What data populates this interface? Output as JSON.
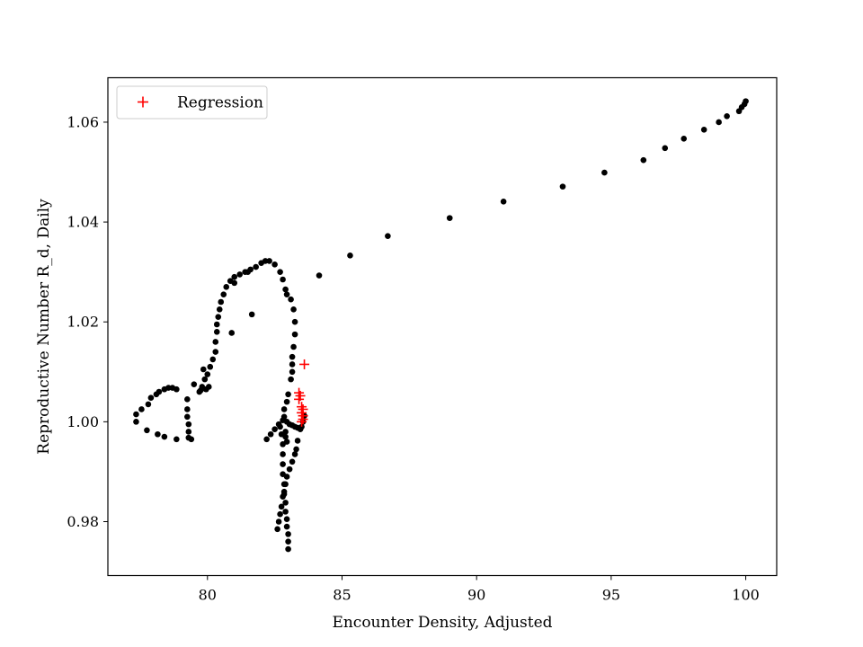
{
  "chart_data": {
    "type": "scatter",
    "xlabel": "Encounter Density, Adjusted",
    "ylabel": "Reproductive Number R_d, Daily",
    "xlim": [
      76.3,
      101.15
    ],
    "ylim": [
      0.9692,
      1.0689
    ],
    "x_ticks": [
      80,
      85,
      90,
      95,
      100
    ],
    "x_tick_labels": [
      "80",
      "85",
      "90",
      "95",
      "100"
    ],
    "y_ticks": [
      0.98,
      1.0,
      1.02,
      1.04,
      1.06
    ],
    "y_tick_labels": [
      "0.98",
      "1.00",
      "1.02",
      "1.04",
      "1.06"
    ],
    "grid": false,
    "legend_position": "top-left",
    "series": [
      {
        "style": "dot",
        "color": "#000000",
        "points": [
          [
            100.0,
            1.0642
          ],
          [
            99.95,
            1.0636
          ],
          [
            99.85,
            1.063
          ],
          [
            99.75,
            1.0622
          ],
          [
            99.3,
            1.0612
          ],
          [
            99.0,
            1.06
          ],
          [
            98.45,
            1.0585
          ],
          [
            97.7,
            1.0567
          ],
          [
            97.0,
            1.0548
          ],
          [
            96.2,
            1.0524
          ],
          [
            94.75,
            1.0499
          ],
          [
            93.2,
            1.0471
          ],
          [
            91.0,
            1.0441
          ],
          [
            89.0,
            1.0408
          ],
          [
            86.7,
            1.0372
          ],
          [
            85.3,
            1.0333
          ],
          [
            84.15,
            1.0293
          ],
          [
            83.6,
            1.0012
          ],
          [
            83.55,
            1.0
          ],
          [
            83.5,
            0.999
          ],
          [
            83.45,
            0.9985
          ],
          [
            83.35,
            0.9962
          ],
          [
            83.3,
            0.9945
          ],
          [
            83.25,
            0.9935
          ],
          [
            83.15,
            0.992
          ],
          [
            83.05,
            0.9905
          ],
          [
            82.95,
            0.989
          ],
          [
            82.9,
            0.9875
          ],
          [
            82.85,
            0.986
          ],
          [
            82.8,
            0.985
          ],
          [
            82.75,
            0.983
          ],
          [
            82.7,
            0.9815
          ],
          [
            82.65,
            0.98
          ],
          [
            82.6,
            0.9785
          ],
          [
            83.0,
            0.9745
          ],
          [
            83.0,
            0.976
          ],
          [
            83.0,
            0.9775
          ],
          [
            82.95,
            0.979
          ],
          [
            82.95,
            0.9805
          ],
          [
            82.9,
            0.982
          ],
          [
            82.9,
            0.9838
          ],
          [
            82.85,
            0.9855
          ],
          [
            82.85,
            0.9875
          ],
          [
            82.8,
            0.9895
          ],
          [
            82.8,
            0.9915
          ],
          [
            82.8,
            0.9935
          ],
          [
            82.8,
            0.9955
          ],
          [
            82.75,
            0.9975
          ],
          [
            82.7,
            0.999
          ],
          [
            82.2,
            0.9965
          ],
          [
            82.35,
            0.9975
          ],
          [
            82.5,
            0.9985
          ],
          [
            82.65,
            0.9995
          ],
          [
            82.8,
            1.0003
          ],
          [
            82.95,
            1.0
          ],
          [
            83.05,
            0.9995
          ],
          [
            83.15,
            0.9993
          ],
          [
            83.25,
            0.999
          ],
          [
            83.35,
            0.9988
          ],
          [
            82.95,
            0.996
          ],
          [
            82.9,
            0.997
          ],
          [
            82.9,
            0.998
          ],
          [
            82.85,
            1.001
          ],
          [
            82.85,
            1.0025
          ],
          [
            82.95,
            1.004
          ],
          [
            83.0,
            1.0055
          ],
          [
            83.1,
            1.0085
          ],
          [
            83.15,
            1.01
          ],
          [
            83.15,
            1.0115
          ],
          [
            83.15,
            1.013
          ],
          [
            83.2,
            1.015
          ],
          [
            83.25,
            1.0175
          ],
          [
            83.25,
            1.02
          ],
          [
            83.2,
            1.0225
          ],
          [
            83.1,
            1.0245
          ],
          [
            82.95,
            1.0255
          ],
          [
            82.9,
            1.0265
          ],
          [
            82.8,
            1.0285
          ],
          [
            82.7,
            1.03
          ],
          [
            82.5,
            1.0315
          ],
          [
            82.3,
            1.0322
          ],
          [
            82.15,
            1.0322
          ],
          [
            82.0,
            1.0318
          ],
          [
            81.8,
            1.031
          ],
          [
            81.6,
            1.0305
          ],
          [
            81.4,
            1.03
          ],
          [
            81.2,
            1.0295
          ],
          [
            81.0,
            1.029
          ],
          [
            80.85,
            1.0282
          ],
          [
            80.7,
            1.027
          ],
          [
            80.6,
            1.0255
          ],
          [
            80.5,
            1.024
          ],
          [
            80.45,
            1.0225
          ],
          [
            80.4,
            1.021
          ],
          [
            80.35,
            1.0195
          ],
          [
            80.35,
            1.018
          ],
          [
            80.3,
            1.016
          ],
          [
            80.3,
            1.014
          ],
          [
            80.2,
            1.0125
          ],
          [
            80.1,
            1.011
          ],
          [
            80.0,
            1.0095
          ],
          [
            79.9,
            1.0085
          ],
          [
            79.8,
            1.007
          ],
          [
            79.7,
            1.006
          ],
          [
            79.4,
            0.9965
          ],
          [
            79.3,
            0.9968
          ],
          [
            79.3,
            0.998
          ],
          [
            79.3,
            0.9995
          ],
          [
            79.25,
            1.001
          ],
          [
            79.25,
            1.0025
          ],
          [
            79.25,
            1.0045
          ],
          [
            78.85,
            1.0065
          ],
          [
            78.7,
            1.0068
          ],
          [
            78.55,
            1.0068
          ],
          [
            78.4,
            1.0065
          ],
          [
            78.2,
            1.006
          ],
          [
            78.1,
            1.0055
          ],
          [
            77.9,
            1.0048
          ],
          [
            77.8,
            1.0035
          ],
          [
            77.55,
            1.0025
          ],
          [
            77.35,
            1.0015
          ],
          [
            77.35,
            1.0
          ],
          [
            77.75,
            0.9983
          ],
          [
            78.15,
            0.9975
          ],
          [
            78.4,
            0.997
          ],
          [
            78.85,
            0.9965
          ],
          [
            79.95,
            1.0065
          ],
          [
            80.05,
            1.007
          ],
          [
            81.0,
            1.0278
          ],
          [
            81.5,
            1.03
          ],
          [
            81.65,
            1.0215
          ],
          [
            80.9,
            1.0178
          ],
          [
            79.5,
            1.0075
          ],
          [
            79.75,
            1.0063
          ],
          [
            79.85,
            1.0105
          ]
        ]
      },
      {
        "name": "Regression",
        "style": "plus",
        "color": "#ff0000",
        "points": [
          [
            83.6,
            1.0115
          ],
          [
            83.4,
            1.0058
          ],
          [
            83.45,
            1.0052
          ],
          [
            83.4,
            1.0045
          ],
          [
            83.5,
            1.003
          ],
          [
            83.55,
            1.0025
          ],
          [
            83.5,
            1.0018
          ],
          [
            83.55,
            1.0012
          ],
          [
            83.55,
            1.0005
          ],
          [
            83.5,
            1.0
          ]
        ]
      }
    ]
  }
}
